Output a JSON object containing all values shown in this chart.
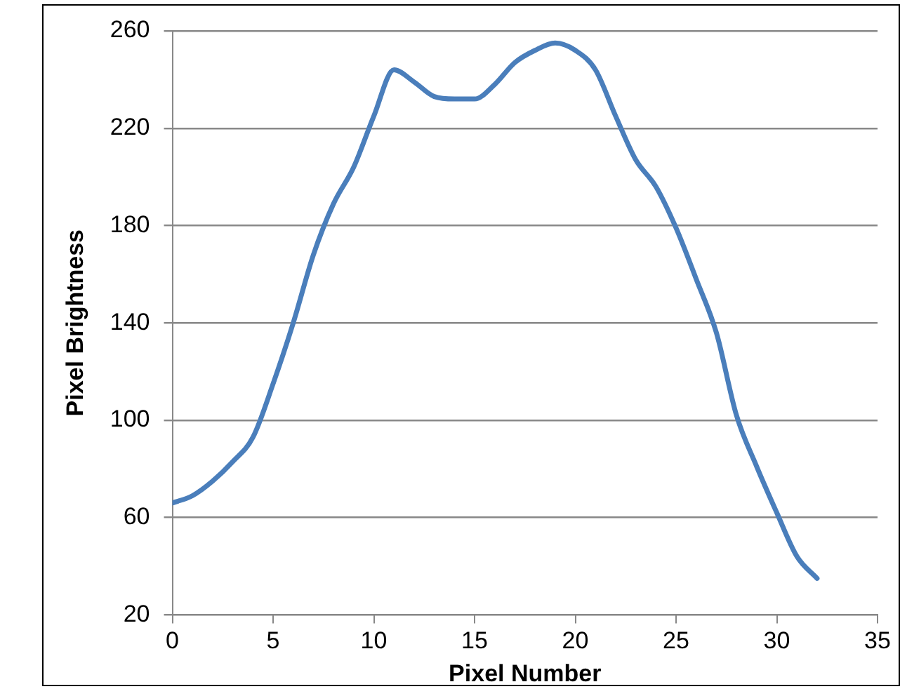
{
  "chart_data": {
    "type": "line",
    "xlabel": "Pixel Number",
    "ylabel": "Pixel Brightness",
    "x": [
      0,
      1,
      2,
      3,
      4,
      5,
      6,
      7,
      8,
      9,
      10,
      11,
      12,
      13,
      14,
      15,
      16,
      17,
      18,
      19,
      20,
      21,
      22,
      23,
      24,
      25,
      26,
      27,
      28,
      29,
      30,
      31,
      32
    ],
    "series": [
      {
        "color": "#4a7ebb",
        "values": [
          66,
          69,
          75,
          83,
          93,
          115,
          140,
          168,
          189,
          204,
          225,
          244,
          239,
          233,
          232,
          232,
          238,
          247,
          252,
          255,
          252,
          244,
          225,
          207,
          196,
          179,
          158,
          136,
          102,
          81,
          62,
          44,
          35
        ]
      }
    ],
    "xlim": [
      0,
      35
    ],
    "xticks": [
      0,
      5,
      10,
      15,
      20,
      25,
      30,
      35
    ],
    "ylim": [
      20,
      260
    ],
    "yticks": [
      20,
      60,
      100,
      140,
      180,
      220,
      260
    ],
    "grid": "y",
    "legend": false,
    "marker": "none",
    "line_style": "solid"
  }
}
